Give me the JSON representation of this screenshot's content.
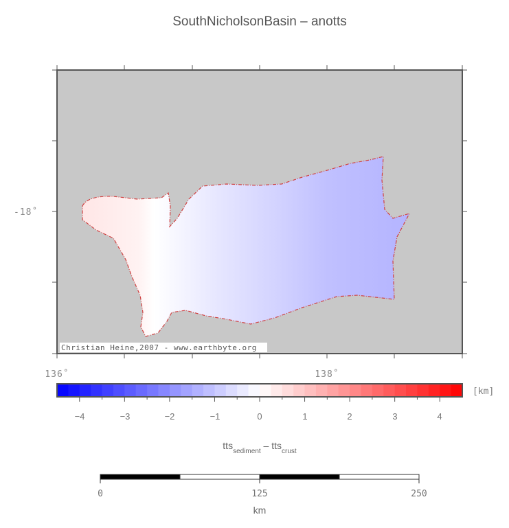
{
  "title": "SouthNicholsonBasin – anotts",
  "map": {
    "lon_labels": [
      "136˚",
      "138˚"
    ],
    "lat_labels": [
      "-18˚"
    ],
    "credit": "Christian Heine,2007 - www.earthbyte.org",
    "background_color": "#c8c8c8",
    "outline_color": "#d04040"
  },
  "colorbar": {
    "unit": "[km]",
    "tick_labels": [
      "−4",
      "−3",
      "−2",
      "−1",
      "0",
      "1",
      "2",
      "3",
      "4"
    ],
    "range": [
      -4.5,
      4.5
    ],
    "low_color": "#0000ff",
    "mid_color": "#ffffff",
    "high_color": "#ff0000",
    "label_main_1": "tts",
    "label_sub_1": "sediment",
    "label_sep": " – tts",
    "label_sub_2": "crust"
  },
  "scalebar": {
    "tick_labels": [
      "0",
      "125",
      "250"
    ],
    "unit": "km"
  }
}
